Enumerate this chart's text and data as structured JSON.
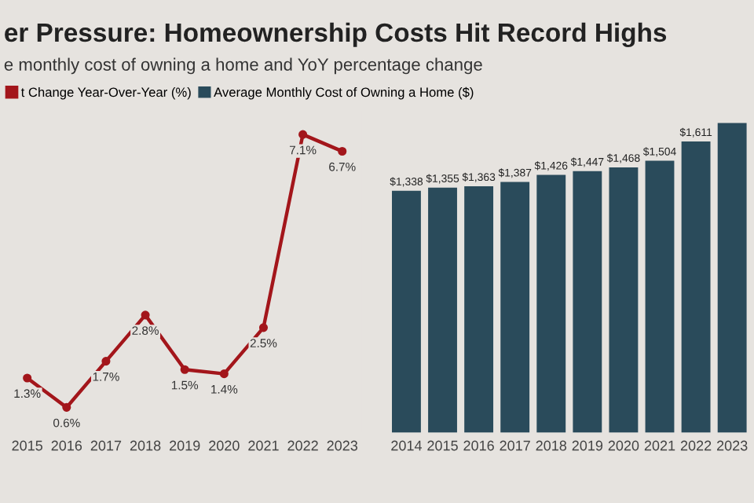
{
  "chart_data": [
    {
      "type": "line",
      "title": "er Pressure: Homeownership Costs Hit Record Highs",
      "subtitle": "e monthly cost of owning a home and YoY percentage change",
      "categories": [
        "2015",
        "2016",
        "2017",
        "2018",
        "2019",
        "2020",
        "2021",
        "2022",
        "2023"
      ],
      "series": [
        {
          "name": "t Change Year-Over-Year (%)",
          "color": "#a3161b",
          "values": [
            1.3,
            0.6,
            1.7,
            2.8,
            1.5,
            1.4,
            2.5,
            7.1,
            6.7
          ],
          "value_labels": [
            "1.3%",
            "0.6%",
            "1.7%",
            "2.8%",
            "1.5%",
            "1.4%",
            "2.5%",
            "7.1%",
            "6.7%"
          ]
        }
      ],
      "marker": "circle",
      "line_style": "solid",
      "legend": "top left",
      "grid": false,
      "tick_labels": "x"
    },
    {
      "type": "bar",
      "categories": [
        "2014",
        "2015",
        "2016",
        "2017",
        "2018",
        "2019",
        "2020",
        "2021",
        "2022",
        "2023"
      ],
      "series": [
        {
          "name": "Average Monthly Cost of Owning a Home ($)",
          "color": "#2a4b5b",
          "values": [
            1338,
            1355,
            1363,
            1387,
            1426,
            1447,
            1468,
            1504,
            1611,
            1713
          ],
          "value_labels": [
            "$1,338",
            "$1,355",
            "$1,363",
            "$1,387",
            "$1,426",
            "$1,447",
            "$1,468",
            "$1,504",
            "$1,611",
            null
          ]
        }
      ],
      "legend": "top left",
      "grid": false,
      "tick_labels": "x"
    }
  ]
}
